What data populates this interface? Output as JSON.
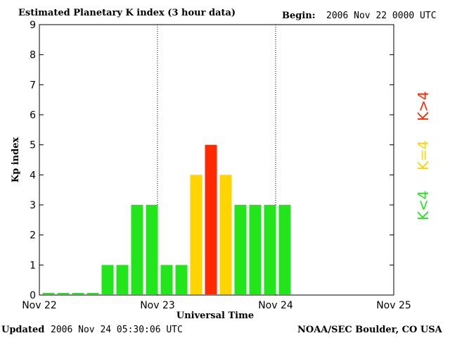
{
  "header": {
    "title": "Estimated Planetary K index (3 hour data)",
    "begin_label": "Begin:",
    "begin_value": "2006 Nov 22 0000 UTC"
  },
  "footer": {
    "updated_label": "Updated",
    "updated_value": "2006 Nov 24 05:30:06 UTC",
    "source": "NOAA/SEC Boulder, CO USA"
  },
  "legend": {
    "high": "K>4",
    "equal": "K=4",
    "low": "K<4"
  },
  "colors": {
    "low": "#22e61b",
    "equal": "#ffd400",
    "high": "#ff2a00"
  },
  "chart_data": {
    "type": "bar",
    "xlabel": "Universal Time",
    "ylabel": "Kp index",
    "ylim": [
      0,
      9
    ],
    "yticks": [
      "0",
      "1",
      "2",
      "3",
      "4",
      "5",
      "6",
      "7",
      "8",
      "9"
    ],
    "xticks": [
      "Nov 22",
      "Nov 23",
      "Nov 24",
      "Nov 25"
    ],
    "bins_per_day": 8,
    "values": [
      0,
      0,
      0,
      0,
      1,
      1,
      3,
      3,
      1,
      1,
      4,
      5,
      4,
      3,
      3,
      3,
      3
    ],
    "grid": "vertical dotted day dividers"
  }
}
